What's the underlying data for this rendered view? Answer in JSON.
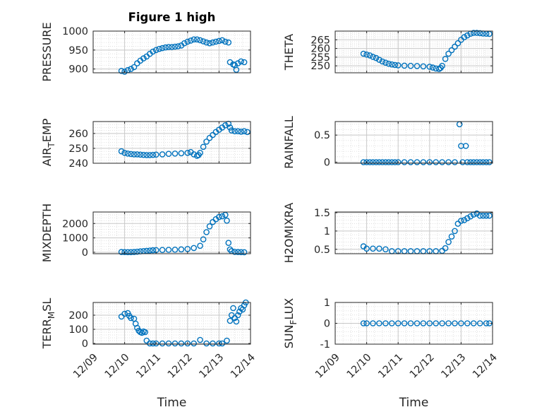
{
  "figure": {
    "title": "Figure 1 high",
    "xlabel": "Time",
    "colors": {
      "marker": "#0072bd",
      "axis": "#262626",
      "grid": "#c8c8c8"
    }
  },
  "chart_data": [
    {
      "type": "scatter",
      "title": "Figure 1 high",
      "ylabel_parts": [
        "PRESSURE"
      ],
      "xlabel": "",
      "xlim": [
        "12/09",
        "12/14"
      ],
      "xticks": [
        "12/09",
        "12/10",
        "12/11",
        "12/12",
        "12/13",
        "12/14"
      ],
      "ylim": [
        890,
        1000
      ],
      "yticks": [
        "900",
        "950",
        "1000"
      ],
      "grid": "on",
      "points": [
        [
          9.9,
          895
        ],
        [
          10.0,
          893
        ],
        [
          10.1,
          897
        ],
        [
          10.2,
          900
        ],
        [
          10.3,
          905
        ],
        [
          10.4,
          915
        ],
        [
          10.5,
          922
        ],
        [
          10.6,
          928
        ],
        [
          10.7,
          933
        ],
        [
          10.8,
          940
        ],
        [
          10.9,
          946
        ],
        [
          11.0,
          950
        ],
        [
          11.1,
          953
        ],
        [
          11.2,
          955
        ],
        [
          11.3,
          957
        ],
        [
          11.4,
          958
        ],
        [
          11.5,
          958
        ],
        [
          11.6,
          959
        ],
        [
          11.7,
          960
        ],
        [
          11.8,
          962
        ],
        [
          11.9,
          968
        ],
        [
          12.0,
          972
        ],
        [
          12.1,
          975
        ],
        [
          12.2,
          978
        ],
        [
          12.3,
          978
        ],
        [
          12.4,
          976
        ],
        [
          12.5,
          973
        ],
        [
          12.6,
          970
        ],
        [
          12.7,
          968
        ],
        [
          12.8,
          970
        ],
        [
          12.9,
          972
        ],
        [
          13.0,
          974
        ],
        [
          13.1,
          976
        ],
        [
          13.2,
          972
        ],
        [
          13.3,
          970
        ],
        [
          13.35,
          918
        ],
        [
          13.45,
          912
        ],
        [
          13.5,
          910
        ],
        [
          13.55,
          898
        ],
        [
          13.6,
          915
        ],
        [
          13.7,
          920
        ],
        [
          13.8,
          918
        ]
      ]
    },
    {
      "type": "scatter",
      "title": "",
      "ylabel_parts": [
        "THETA"
      ],
      "xlabel": "",
      "xlim": [
        "12/09",
        "12/14"
      ],
      "xticks": [
        "12/09",
        "12/10",
        "12/11",
        "12/12",
        "12/13",
        "12/14"
      ],
      "ylim": [
        246,
        270
      ],
      "yticks": [
        "250",
        "255",
        "260",
        "265"
      ],
      "grid": "on",
      "points": [
        [
          9.9,
          257
        ],
        [
          10.0,
          256.5
        ],
        [
          10.1,
          256
        ],
        [
          10.2,
          255.2
        ],
        [
          10.3,
          254.5
        ],
        [
          10.4,
          253.5
        ],
        [
          10.5,
          252.5
        ],
        [
          10.6,
          251.8
        ],
        [
          10.7,
          251.2
        ],
        [
          10.8,
          250.8
        ],
        [
          10.9,
          250.5
        ],
        [
          11.0,
          250.3
        ],
        [
          11.2,
          250.1
        ],
        [
          11.4,
          250.0
        ],
        [
          11.6,
          249.9
        ],
        [
          11.8,
          249.7
        ],
        [
          12.0,
          249.5
        ],
        [
          12.1,
          249.0
        ],
        [
          12.2,
          248.5
        ],
        [
          12.3,
          248.2
        ],
        [
          12.35,
          248.8
        ],
        [
          12.4,
          250
        ],
        [
          12.5,
          254
        ],
        [
          12.6,
          257
        ],
        [
          12.7,
          259
        ],
        [
          12.8,
          261
        ],
        [
          12.9,
          263
        ],
        [
          13.0,
          265
        ],
        [
          13.1,
          266.5
        ],
        [
          13.2,
          267.5
        ],
        [
          13.3,
          268.5
        ],
        [
          13.4,
          269
        ],
        [
          13.5,
          269
        ],
        [
          13.6,
          268.8
        ],
        [
          13.7,
          268.6
        ],
        [
          13.8,
          268.5
        ],
        [
          13.9,
          268.4
        ]
      ]
    },
    {
      "type": "scatter",
      "title": "",
      "ylabel_parts": [
        "AIR",
        "T",
        "EMP"
      ],
      "xlabel": "",
      "xlim": [
        "12/09",
        "12/14"
      ],
      "xticks": [
        "12/09",
        "12/10",
        "12/11",
        "12/12",
        "12/13",
        "12/14"
      ],
      "ylim": [
        240,
        268
      ],
      "yticks": [
        "240",
        "250",
        "260"
      ],
      "grid": "on",
      "points": [
        [
          9.9,
          248
        ],
        [
          10.0,
          247
        ],
        [
          10.1,
          246.5
        ],
        [
          10.2,
          246.2
        ],
        [
          10.3,
          246
        ],
        [
          10.4,
          246
        ],
        [
          10.5,
          245.8
        ],
        [
          10.6,
          245.6
        ],
        [
          10.7,
          245.5
        ],
        [
          10.8,
          245.5
        ],
        [
          10.9,
          245.6
        ],
        [
          11.0,
          245.8
        ],
        [
          11.2,
          246
        ],
        [
          11.4,
          246.3
        ],
        [
          11.6,
          246.5
        ],
        [
          11.8,
          246.7
        ],
        [
          12.0,
          247
        ],
        [
          12.1,
          247.5
        ],
        [
          12.2,
          246
        ],
        [
          12.3,
          245
        ],
        [
          12.35,
          245.5
        ],
        [
          12.4,
          247
        ],
        [
          12.5,
          251
        ],
        [
          12.6,
          254.5
        ],
        [
          12.7,
          257
        ],
        [
          12.8,
          259
        ],
        [
          12.9,
          261
        ],
        [
          13.0,
          262.5
        ],
        [
          13.1,
          264
        ],
        [
          13.2,
          265.5
        ],
        [
          13.3,
          266.5
        ],
        [
          13.35,
          264
        ],
        [
          13.4,
          262
        ],
        [
          13.5,
          261.5
        ],
        [
          13.6,
          261.5
        ],
        [
          13.7,
          261.2
        ],
        [
          13.8,
          261.5
        ],
        [
          13.9,
          261
        ]
      ]
    },
    {
      "type": "scatter",
      "title": "",
      "ylabel_parts": [
        "RAINFALL"
      ],
      "xlabel": "",
      "xlim": [
        "12/09",
        "12/14"
      ],
      "xticks": [
        "12/09",
        "12/10",
        "12/11",
        "12/12",
        "12/13",
        "12/14"
      ],
      "ylim": [
        -0.02,
        0.75
      ],
      "yticks": [
        "0",
        "0.5"
      ],
      "grid": "on",
      "points": [
        [
          9.9,
          0
        ],
        [
          10.0,
          0
        ],
        [
          10.1,
          0
        ],
        [
          10.2,
          0
        ],
        [
          10.3,
          0
        ],
        [
          10.4,
          0
        ],
        [
          10.5,
          0
        ],
        [
          10.6,
          0
        ],
        [
          10.7,
          0
        ],
        [
          10.8,
          0
        ],
        [
          10.9,
          0
        ],
        [
          11.0,
          0
        ],
        [
          11.2,
          0
        ],
        [
          11.4,
          0
        ],
        [
          11.6,
          0
        ],
        [
          11.8,
          0
        ],
        [
          12.0,
          0
        ],
        [
          12.2,
          0
        ],
        [
          12.4,
          0
        ],
        [
          12.6,
          0
        ],
        [
          12.8,
          0
        ],
        [
          12.95,
          0.7
        ],
        [
          13.0,
          0.3
        ],
        [
          13.05,
          0
        ],
        [
          13.15,
          0.3
        ],
        [
          13.2,
          0
        ],
        [
          13.3,
          0
        ],
        [
          13.4,
          0
        ],
        [
          13.5,
          0
        ],
        [
          13.6,
          0
        ],
        [
          13.7,
          0
        ],
        [
          13.8,
          0
        ],
        [
          13.9,
          0
        ]
      ]
    },
    {
      "type": "scatter",
      "title": "",
      "ylabel_parts": [
        "MIXDEPTH"
      ],
      "xlabel": "",
      "xlim": [
        "12/09",
        "12/14"
      ],
      "xticks": [
        "12/09",
        "12/10",
        "12/11",
        "12/12",
        "12/13",
        "12/14"
      ],
      "ylim": [
        -100,
        2800
      ],
      "yticks": [
        "0",
        "1000",
        "2000"
      ],
      "grid": "on",
      "points": [
        [
          9.9,
          20
        ],
        [
          10.0,
          15
        ],
        [
          10.1,
          10
        ],
        [
          10.2,
          10
        ],
        [
          10.3,
          20
        ],
        [
          10.4,
          40
        ],
        [
          10.5,
          60
        ],
        [
          10.6,
          80
        ],
        [
          10.7,
          100
        ],
        [
          10.8,
          120
        ],
        [
          10.9,
          140
        ],
        [
          11.0,
          150
        ],
        [
          11.2,
          160
        ],
        [
          11.4,
          170
        ],
        [
          11.6,
          180
        ],
        [
          11.8,
          200
        ],
        [
          12.0,
          230
        ],
        [
          12.2,
          300
        ],
        [
          12.4,
          450
        ],
        [
          12.5,
          900
        ],
        [
          12.6,
          1400
        ],
        [
          12.7,
          1800
        ],
        [
          12.8,
          2100
        ],
        [
          12.9,
          2300
        ],
        [
          13.0,
          2450
        ],
        [
          13.1,
          2500
        ],
        [
          13.2,
          2600
        ],
        [
          13.25,
          2200
        ],
        [
          13.3,
          650
        ],
        [
          13.35,
          200
        ],
        [
          13.4,
          80
        ],
        [
          13.5,
          30
        ],
        [
          13.6,
          20
        ],
        [
          13.7,
          10
        ],
        [
          13.8,
          5
        ]
      ]
    },
    {
      "type": "scatter",
      "title": "",
      "ylabel_parts": [
        "H2OMIXRA"
      ],
      "xlabel": "",
      "xlim": [
        "12/09",
        "12/14"
      ],
      "xticks": [
        "12/09",
        "12/10",
        "12/11",
        "12/12",
        "12/13",
        "12/14"
      ],
      "ylim": [
        0.38,
        1.52
      ],
      "yticks": [
        "0.5",
        "1",
        "1.5"
      ],
      "grid": "on",
      "points": [
        [
          9.9,
          0.58
        ],
        [
          10.0,
          0.52
        ],
        [
          10.2,
          0.52
        ],
        [
          10.4,
          0.52
        ],
        [
          10.6,
          0.5
        ],
        [
          10.8,
          0.45
        ],
        [
          11.0,
          0.45
        ],
        [
          11.2,
          0.45
        ],
        [
          11.4,
          0.45
        ],
        [
          11.6,
          0.45
        ],
        [
          11.8,
          0.45
        ],
        [
          12.0,
          0.45
        ],
        [
          12.2,
          0.45
        ],
        [
          12.4,
          0.46
        ],
        [
          12.5,
          0.53
        ],
        [
          12.6,
          0.7
        ],
        [
          12.7,
          0.85
        ],
        [
          12.8,
          1.0
        ],
        [
          12.9,
          1.2
        ],
        [
          13.0,
          1.28
        ],
        [
          13.1,
          1.3
        ],
        [
          13.2,
          1.35
        ],
        [
          13.3,
          1.4
        ],
        [
          13.4,
          1.45
        ],
        [
          13.5,
          1.48
        ],
        [
          13.6,
          1.42
        ],
        [
          13.7,
          1.42
        ],
        [
          13.8,
          1.42
        ],
        [
          13.9,
          1.42
        ]
      ]
    },
    {
      "type": "scatter",
      "title": "",
      "ylabel_parts": [
        "TERR",
        "M",
        "SL"
      ],
      "xlabel": "Time",
      "xlim": [
        "12/09",
        "12/14"
      ],
      "xticks": [
        "12/09",
        "12/10",
        "12/11",
        "12/12",
        "12/13",
        "12/14"
      ],
      "ylim": [
        -5,
        290
      ],
      "yticks": [
        "0",
        "100",
        "200"
      ],
      "grid": "on",
      "points": [
        [
          9.9,
          190
        ],
        [
          10.0,
          210
        ],
        [
          10.1,
          215
        ],
        [
          10.15,
          195
        ],
        [
          10.2,
          180
        ],
        [
          10.3,
          175
        ],
        [
          10.35,
          140
        ],
        [
          10.4,
          110
        ],
        [
          10.45,
          90
        ],
        [
          10.5,
          80
        ],
        [
          10.55,
          75
        ],
        [
          10.6,
          85
        ],
        [
          10.65,
          80
        ],
        [
          10.7,
          20
        ],
        [
          10.8,
          0
        ],
        [
          10.9,
          0
        ],
        [
          11.0,
          0
        ],
        [
          11.2,
          0
        ],
        [
          11.4,
          0
        ],
        [
          11.6,
          0
        ],
        [
          11.8,
          0
        ],
        [
          12.0,
          0
        ],
        [
          12.2,
          0
        ],
        [
          12.4,
          25
        ],
        [
          12.6,
          0
        ],
        [
          12.8,
          0
        ],
        [
          13.0,
          0
        ],
        [
          13.1,
          0
        ],
        [
          13.25,
          20
        ],
        [
          13.35,
          160
        ],
        [
          13.4,
          200
        ],
        [
          13.45,
          250
        ],
        [
          13.5,
          180
        ],
        [
          13.55,
          155
        ],
        [
          13.6,
          200
        ],
        [
          13.65,
          225
        ],
        [
          13.7,
          250
        ],
        [
          13.75,
          240
        ],
        [
          13.8,
          270
        ],
        [
          13.85,
          290
        ]
      ]
    },
    {
      "type": "scatter",
      "title": "",
      "ylabel_parts": [
        "SUN",
        "F",
        "LUX"
      ],
      "xlabel": "Time",
      "xlim": [
        "12/09",
        "12/14"
      ],
      "xticks": [
        "12/09",
        "12/10",
        "12/11",
        "12/12",
        "12/13",
        "12/14"
      ],
      "ylim": [
        -1,
        1
      ],
      "yticks": [
        "-1",
        "0",
        "1"
      ],
      "grid": "on",
      "points": [
        [
          9.9,
          0
        ],
        [
          10.0,
          0
        ],
        [
          10.2,
          0
        ],
        [
          10.4,
          0
        ],
        [
          10.6,
          0
        ],
        [
          10.8,
          0
        ],
        [
          11.0,
          0
        ],
        [
          11.2,
          0
        ],
        [
          11.4,
          0
        ],
        [
          11.6,
          0
        ],
        [
          11.8,
          0
        ],
        [
          12.0,
          0
        ],
        [
          12.2,
          0
        ],
        [
          12.4,
          0
        ],
        [
          12.6,
          0
        ],
        [
          12.8,
          0
        ],
        [
          13.0,
          0
        ],
        [
          13.2,
          0
        ],
        [
          13.4,
          0
        ],
        [
          13.6,
          0
        ],
        [
          13.8,
          0
        ],
        [
          13.9,
          0
        ]
      ]
    }
  ]
}
